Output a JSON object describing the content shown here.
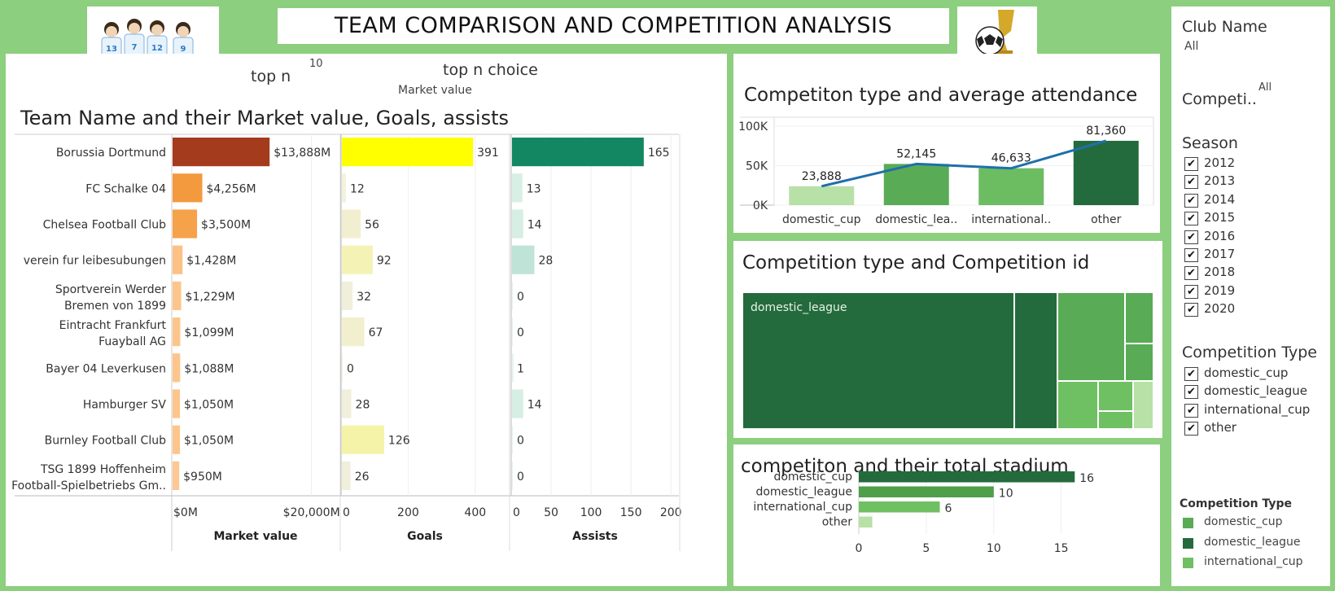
{
  "dashboard": {
    "title": "TEAM COMPARISON AND COMPETITION ANALYSIS",
    "top_n_label": "top n",
    "top_n_value": "10",
    "top_n_choice_label": "top n choice",
    "top_n_choice_value": "Market value"
  },
  "filters": {
    "club_name_label": "Club Name",
    "club_name_value": "All",
    "competition_label": "Competi..",
    "competition_value": "All",
    "season_label": "Season",
    "seasons": [
      {
        "label": "2012",
        "checked": true
      },
      {
        "label": "2013",
        "checked": true
      },
      {
        "label": "2014",
        "checked": true
      },
      {
        "label": "2015",
        "checked": true
      },
      {
        "label": "2016",
        "checked": true
      },
      {
        "label": "2017",
        "checked": true
      },
      {
        "label": "2018",
        "checked": true
      },
      {
        "label": "2019",
        "checked": true
      },
      {
        "label": "2020",
        "checked": true
      }
    ],
    "competition_type_label": "Competition Type",
    "competition_types": [
      {
        "label": "domestic_cup",
        "checked": true
      },
      {
        "label": "domestic_league",
        "checked": true
      },
      {
        "label": "international_cup",
        "checked": true
      },
      {
        "label": "other",
        "checked": true
      }
    ],
    "check_glyph": "✔"
  },
  "legend": {
    "title": "Competition Type",
    "items": [
      {
        "label": "domestic_cup",
        "color": "#5aab55"
      },
      {
        "label": "domestic_league",
        "color": "#236b3c"
      },
      {
        "label": "international_cup",
        "color": "#6fbf63"
      }
    ]
  },
  "chart_data": [
    {
      "id": "team-market-goals-assists",
      "type": "bar",
      "title": "Team Name and their Market value, Goals, assists",
      "categories": [
        [
          "Borussia Dortmund"
        ],
        [
          "FC Schalke 04"
        ],
        [
          "Chelsea Football Club"
        ],
        [
          "verein fur leibesubungen"
        ],
        [
          "Sportverein Werder",
          "Bremen von 1899"
        ],
        [
          "Eintracht Frankfurt",
          "Fuayball AG"
        ],
        [
          "Bayer 04 Leverkusen"
        ],
        [
          "Hamburger SV"
        ],
        [
          "Burnley Football Club"
        ],
        [
          "TSG 1899 Hoffenheim",
          "Football-Spielbetriebs Gm.."
        ]
      ],
      "series": [
        {
          "name": "Market value",
          "values": [
            13888,
            4256,
            3500,
            1428,
            1229,
            1099,
            1088,
            1050,
            1050,
            950
          ],
          "labels": [
            "$13,888M",
            "$4,256M",
            "$3,500M",
            "$1,428M",
            "$1,229M",
            "$1,099M",
            "$1,088M",
            "$1,050M",
            "$1,050M",
            "$950M"
          ],
          "colors": [
            "#a53b1d",
            "#f39a3f",
            "#f6a24a",
            "#fdc085",
            "#fdc58b",
            "#fdc58b",
            "#fdc58b",
            "#fdc58b",
            "#fdc58b",
            "#fdc893"
          ],
          "xlim": [
            0,
            24000
          ],
          "ticks": [
            {
              "v": 0,
              "label": "$0M"
            },
            {
              "v": 20000,
              "label": "$20,000M"
            }
          ]
        },
        {
          "name": "Goals",
          "values": [
            391,
            12,
            56,
            92,
            32,
            67,
            0,
            28,
            126,
            26
          ],
          "labels": [
            "391",
            "12",
            "56",
            "92",
            "32",
            "67",
            "0",
            "28",
            "126",
            "26"
          ],
          "colors": [
            "#ffff00",
            "#f3f2df",
            "#f1efcf",
            "#f5f2b6",
            "#f0efdc",
            "#f2efcf",
            "#f4f3e4",
            "#f0efdc",
            "#f5f3a8",
            "#f0efdc"
          ],
          "xlim": [
            0,
            500
          ],
          "ticks": [
            {
              "v": 0,
              "label": "0"
            },
            {
              "v": 200,
              "label": "200"
            },
            {
              "v": 400,
              "label": "400"
            }
          ]
        },
        {
          "name": "Assists",
          "values": [
            165,
            13,
            14,
            28,
            0,
            0,
            1,
            14,
            0,
            0
          ],
          "labels": [
            "165",
            "13",
            "14",
            "28",
            "0",
            "0",
            "1",
            "14",
            "0",
            "0"
          ],
          "colors": [
            "#138762",
            "#d8efe6",
            "#d6eee4",
            "#bfe3d7",
            "#e6f4ee",
            "#e6f4ee",
            "#e6f4ee",
            "#d6eee4",
            "#e6f4ee",
            "#e6f4ee"
          ],
          "xlim": [
            0,
            210
          ],
          "ticks": [
            {
              "v": 0,
              "label": "0"
            },
            {
              "v": 50,
              "label": "50"
            },
            {
              "v": 100,
              "label": "100"
            },
            {
              "v": 150,
              "label": "150"
            },
            {
              "v": 200,
              "label": "200"
            }
          ]
        }
      ]
    },
    {
      "id": "competition-attendance",
      "type": "bar",
      "title": "Competiton type and average attendance",
      "categories": [
        "domestic_cup",
        "domestic_lea..",
        "international..",
        "other"
      ],
      "values": [
        23888,
        52145,
        46633,
        81360
      ],
      "labels": [
        "23,888",
        "52,145",
        "46,633",
        "81,360"
      ],
      "colors": [
        "#b7e1a6",
        "#5aab55",
        "#6cbc62",
        "#236b3c"
      ],
      "line_color": "#1f6fab",
      "ylim": [
        0,
        105000
      ],
      "yticks": [
        {
          "v": 0,
          "label": "0K"
        },
        {
          "v": 50000,
          "label": "50K"
        },
        {
          "v": 100000,
          "label": "100K"
        }
      ]
    },
    {
      "id": "competition-treemap",
      "type": "heatmap",
      "title": "Competition type and Competition id",
      "visible_label": "domestic_league"
    },
    {
      "id": "competition-stadium",
      "type": "bar",
      "title": "competiton and their total stadium",
      "categories": [
        "domestic_cup",
        "domestic_league",
        "international_cup",
        "other"
      ],
      "values": [
        16,
        10,
        6,
        1
      ],
      "labels": [
        "16",
        "10",
        "6",
        ""
      ],
      "colors": [
        "#236b3c",
        "#4f9e4a",
        "#6fbf63",
        "#b7e1a6"
      ],
      "xlim": [
        0,
        19
      ],
      "xticks": [
        0,
        5,
        10,
        15
      ]
    }
  ]
}
